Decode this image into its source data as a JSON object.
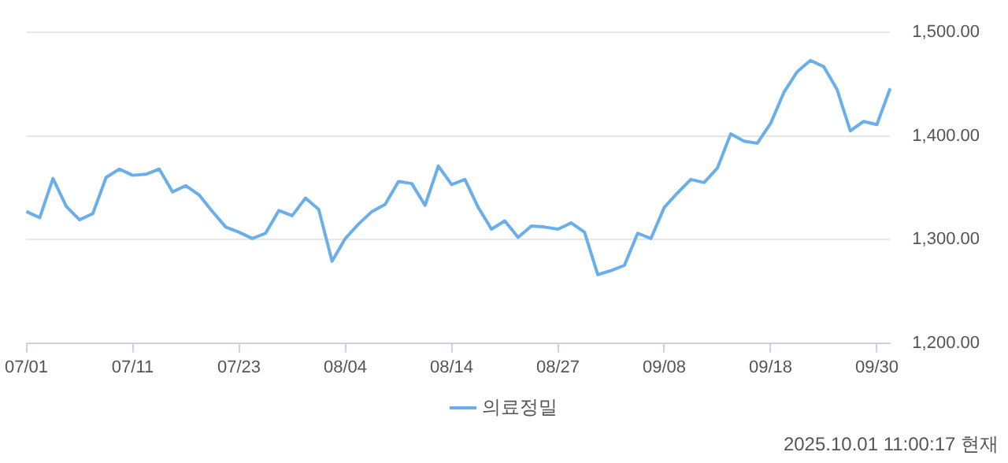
{
  "chart_data": {
    "type": "line",
    "categories": [
      "07/01",
      null,
      null,
      null,
      null,
      null,
      null,
      null,
      "07/11",
      null,
      null,
      null,
      null,
      null,
      null,
      null,
      "07/23",
      null,
      null,
      null,
      null,
      null,
      null,
      null,
      "08/04",
      null,
      null,
      null,
      null,
      null,
      null,
      null,
      "08/14",
      null,
      null,
      null,
      null,
      null,
      null,
      null,
      "08/27",
      null,
      null,
      null,
      null,
      null,
      null,
      null,
      "09/08",
      null,
      null,
      null,
      null,
      null,
      null,
      null,
      "09/18",
      null,
      null,
      null,
      null,
      null,
      null,
      null,
      "09/30",
      null
    ],
    "series": [
      {
        "name": "의료정밀",
        "color": "#6aaeea",
        "values": [
          1327,
          1321,
          1359,
          1332,
          1319,
          1325,
          1360,
          1368,
          1362,
          1363,
          1368,
          1346,
          1352,
          1343,
          1327,
          1312,
          1307,
          1301,
          1306,
          1328,
          1323,
          1340,
          1329,
          1279,
          1301,
          1315,
          1327,
          1334,
          1356,
          1354,
          1333,
          1371,
          1353,
          1358,
          1331,
          1310,
          1318,
          1302,
          1313,
          1312,
          1310,
          1316,
          1307,
          1266,
          1270,
          1275,
          1306,
          1301,
          1331,
          1345,
          1358,
          1355,
          1369,
          1402,
          1395,
          1393,
          1412,
          1442,
          1462,
          1473,
          1467,
          1445,
          1405,
          1414,
          1411,
          1446
        ]
      }
    ],
    "ylim": [
      1200,
      1500
    ],
    "yticks": [
      {
        "value": 1200,
        "label": "1,200.00"
      },
      {
        "value": 1300,
        "label": "1,300.00"
      },
      {
        "value": 1400,
        "label": "1,400.00"
      },
      {
        "value": 1500,
        "label": "1,500.00"
      }
    ],
    "grid": "y",
    "legend": "bottom",
    "marker": "none",
    "line_style": "solid",
    "annotations": [
      "2025.10.01 11:00:17 현재"
    ]
  }
}
